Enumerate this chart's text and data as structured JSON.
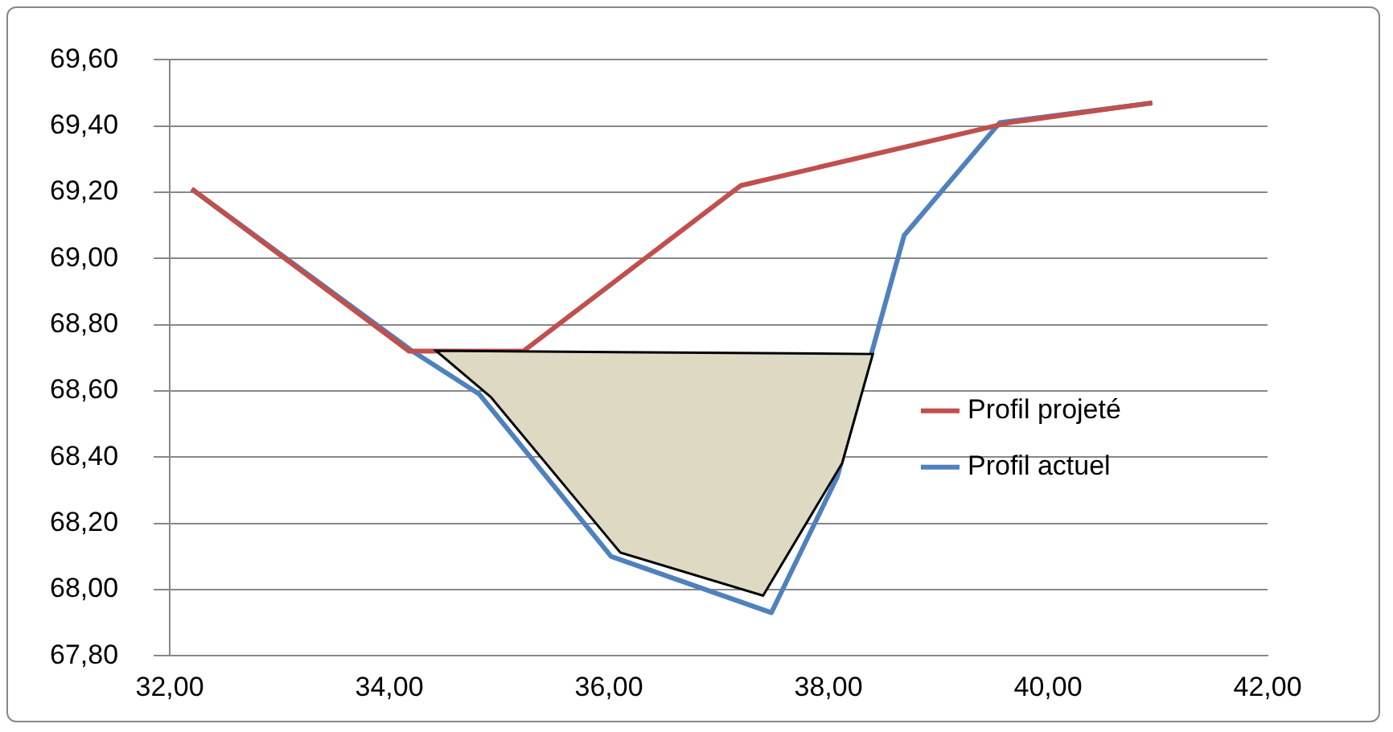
{
  "chart_data": {
    "type": "line",
    "series": [
      {
        "name": "Profil actuel",
        "color": "#4f81bd",
        "x": [
          32.2,
          34.21,
          34.82,
          36.02,
          37.48,
          38.08,
          38.69,
          39.56,
          40.95
        ],
        "values": [
          69.21,
          68.72,
          68.59,
          68.1,
          67.93,
          68.34,
          69.07,
          69.41,
          69.47
        ]
      },
      {
        "name": "Profil projeté",
        "color": "#c0504d",
        "x": [
          32.2,
          34.18,
          35.22,
          37.2,
          39.64,
          40.95
        ],
        "values": [
          69.21,
          68.72,
          68.72,
          69.22,
          69.41,
          69.47
        ]
      }
    ],
    "xlim": [
      32,
      42
    ],
    "xticks": [
      {
        "value": 32,
        "label": "32,00"
      },
      {
        "value": 34,
        "label": "34,00"
      },
      {
        "value": 36,
        "label": "36,00"
      },
      {
        "value": 38,
        "label": "38,00"
      },
      {
        "value": 40,
        "label": "40,00"
      },
      {
        "value": 42,
        "label": "42,00"
      }
    ],
    "ylim": [
      67.8,
      69.6
    ],
    "yticks": [
      {
        "value": 67.8,
        "label": "67,80"
      },
      {
        "value": 68,
        "label": "68,00"
      },
      {
        "value": 68.2,
        "label": "68,20"
      },
      {
        "value": 68.4,
        "label": "68,40"
      },
      {
        "value": 68.6,
        "label": "68,60"
      },
      {
        "value": 68.8,
        "label": "68,80"
      },
      {
        "value": 69,
        "label": "69,00"
      },
      {
        "value": 69.2,
        "label": "69,20"
      },
      {
        "value": 69.4,
        "label": "69,40"
      },
      {
        "value": 69.6,
        "label": "69,60"
      }
    ],
    "grid": "y",
    "legend": "right",
    "marker": "none",
    "line_style": "solid"
  }
}
